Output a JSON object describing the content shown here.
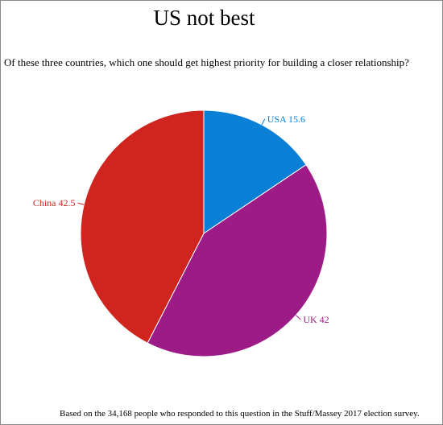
{
  "title": "US not best",
  "subtitle": "Of these three countries, which one should get highest priority for building a closer relationship?",
  "footnote": "Based on the 34,168 people who responded to this question in the Stuff/Massey 2017 election survey.",
  "chart_data": {
    "type": "pie",
    "start_angle": "12 o'clock",
    "direction": "clockwise",
    "slices": [
      {
        "label": "USA",
        "value": 15.6,
        "color": "#0a7fd6"
      },
      {
        "label": "UK",
        "value": 42,
        "color": "#9c1b86"
      },
      {
        "label": "China",
        "value": 42.5,
        "color": "#d0241f"
      }
    ]
  }
}
